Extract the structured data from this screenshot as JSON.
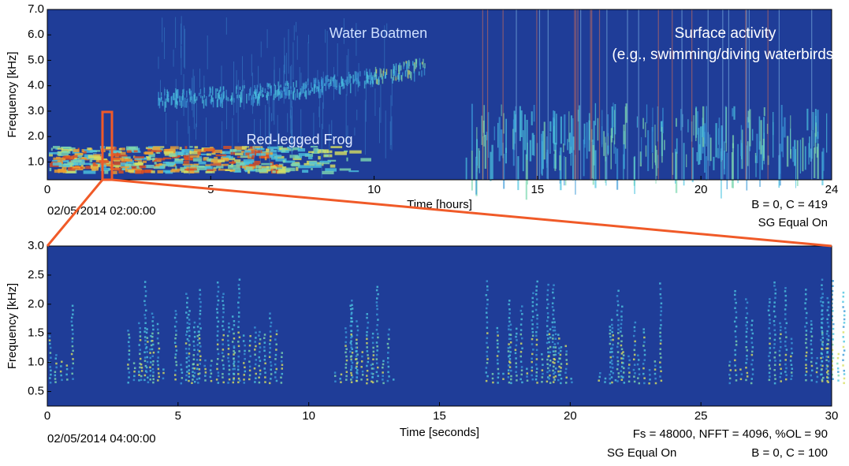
{
  "chart_data": [
    {
      "type": "spectrogram",
      "xlabel": "Time [hours]",
      "ylabel": "Frequency [kHz]",
      "xlim": [
        0,
        24
      ],
      "xticks": [
        0,
        5,
        10,
        15,
        20,
        24
      ],
      "ylim": [
        0.3,
        7.0
      ],
      "yticks": [
        {
          "value": 1,
          "label": "1.0"
        },
        {
          "value": 2,
          "label": "2.0"
        },
        {
          "value": 3,
          "label": "3.0"
        },
        {
          "value": 4,
          "label": "4.0"
        },
        {
          "value": 5,
          "label": "5.0"
        },
        {
          "value": 6,
          "label": "6.0"
        },
        {
          "value": 7,
          "label": "7.0"
        }
      ],
      "annotations": [
        "Water Boatmen",
        "Surface activity",
        "(e.g., swimming/diving waterbirds)",
        "Red-legged Frog",
        "02/05/2014 02:00:00",
        "B = 0, C = 419",
        "SG Equal On"
      ]
    },
    {
      "type": "spectrogram",
      "xlabel": "Time [seconds]",
      "ylabel": "Frequency [kHz]",
      "xlim": [
        0,
        30
      ],
      "xticks": [
        0,
        5,
        10,
        15,
        20,
        25,
        30
      ],
      "ylim": [
        0.25,
        3.0
      ],
      "yticks": [
        0.5,
        {
          "value": 1,
          "label": "1.0"
        },
        1.5,
        {
          "value": 2,
          "label": "2.0"
        },
        2.5,
        {
          "value": 3,
          "label": "3.0"
        }
      ],
      "annotations": [
        "02/05/2014 04:00:00",
        "Fs = 48000, NFFT = 4096, %OL = 90",
        "SG Equal On",
        "B = 0, C = 100"
      ]
    }
  ]
}
